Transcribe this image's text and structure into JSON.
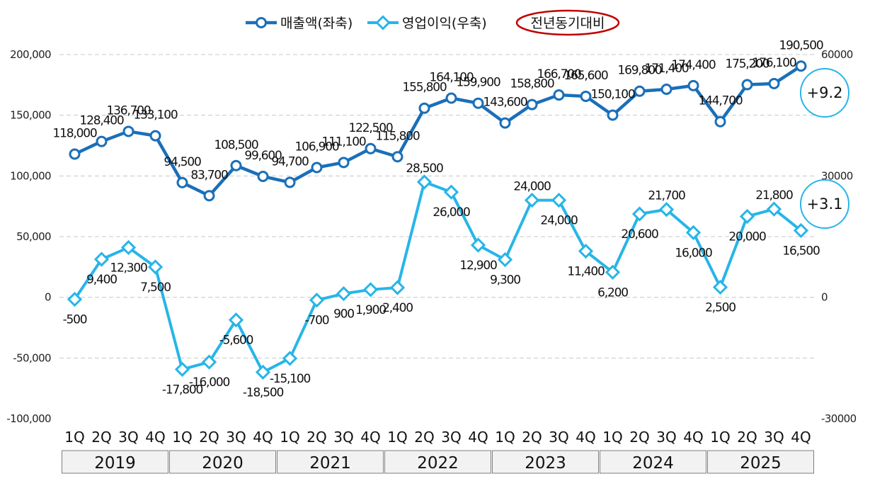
{
  "chart_data": {
    "type": "line",
    "legend": {
      "position": "top-center",
      "items": [
        {
          "label": "매출액(좌축)",
          "color": "#1a6fb8",
          "marker": "circle"
        },
        {
          "label": "영업이익(우축)",
          "color": "#27b5e8",
          "marker": "diamond"
        },
        {
          "label": "전년동기대비",
          "color": "#c00000",
          "marker": "ellipse-outline"
        }
      ]
    },
    "categories": [
      "1Q",
      "2Q",
      "3Q",
      "4Q",
      "1Q",
      "2Q",
      "3Q",
      "4Q",
      "1Q",
      "2Q",
      "3Q",
      "4Q",
      "1Q",
      "2Q",
      "3Q",
      "4Q",
      "1Q",
      "2Q",
      "3Q",
      "4Q",
      "1Q",
      "2Q",
      "3Q",
      "4Q",
      "1Q",
      "2Q",
      "3Q",
      "4Q"
    ],
    "years": [
      "2019",
      "2020",
      "2021",
      "2022",
      "2023",
      "2024",
      "2025"
    ],
    "y_left": {
      "min": -100000,
      "max": 200000,
      "ticks": [
        "-100,000",
        "-50,000",
        "0",
        "50,000",
        "100,000",
        "150,000",
        "200,000"
      ]
    },
    "y_right": {
      "min": -30000,
      "max": 60000,
      "ticks": [
        "-30000",
        "0",
        "30000",
        "60000"
      ]
    },
    "grid": true,
    "series": [
      {
        "name": "매출액(좌축)",
        "axis": "left",
        "color": "#1a6fb8",
        "values": [
          118000,
          128400,
          136700,
          133100,
          94500,
          83700,
          108500,
          99600,
          94700,
          106900,
          111100,
          122500,
          115800,
          155800,
          164100,
          159900,
          143600,
          158800,
          166700,
          165600,
          150100,
          169800,
          171400,
          174400,
          144700,
          175200,
          176100,
          190500
        ],
        "labels": [
          "118,000",
          "128,400",
          "136,700",
          "133,100",
          "94,500",
          "83,700",
          "108,500",
          "99,600",
          "94,700",
          "106,900",
          "111,100",
          "122,500",
          "115,800",
          "155,800",
          "164,100",
          "159,900",
          "143,600",
          "158,800",
          "166,700",
          "165,600",
          "150,100",
          "169,800",
          "171,400",
          "174,400",
          "144,700",
          "175,200",
          "176,100",
          "190,500"
        ]
      },
      {
        "name": "영업이익(우축)",
        "axis": "right",
        "color": "#27b5e8",
        "values": [
          -500,
          9400,
          12300,
          7500,
          -17800,
          -16000,
          -5600,
          -18500,
          -15100,
          -700,
          900,
          1900,
          2400,
          28500,
          26000,
          12900,
          9300,
          24000,
          24000,
          11400,
          6200,
          20600,
          21700,
          16000,
          2500,
          20000,
          21800,
          16500
        ],
        "labels": [
          "-500",
          "9,400",
          "12,300",
          "7,500",
          "-17,800",
          "-16,000",
          "-5,600",
          "-18,500",
          "-15,100",
          "-700",
          "900",
          "1,900",
          "2,400",
          "28,500",
          "26,000",
          "12,900",
          "9,300",
          "24,000",
          "24,000",
          "11,400",
          "6,200",
          "20,600",
          "21,700",
          "16,000",
          "2,500",
          "20,000",
          "21,800",
          "16,500"
        ]
      }
    ],
    "annotations": [
      {
        "text": "+9.2",
        "series": "매출액(좌축)"
      },
      {
        "text": "+3.1",
        "series": "영업이익(우축)"
      }
    ]
  }
}
